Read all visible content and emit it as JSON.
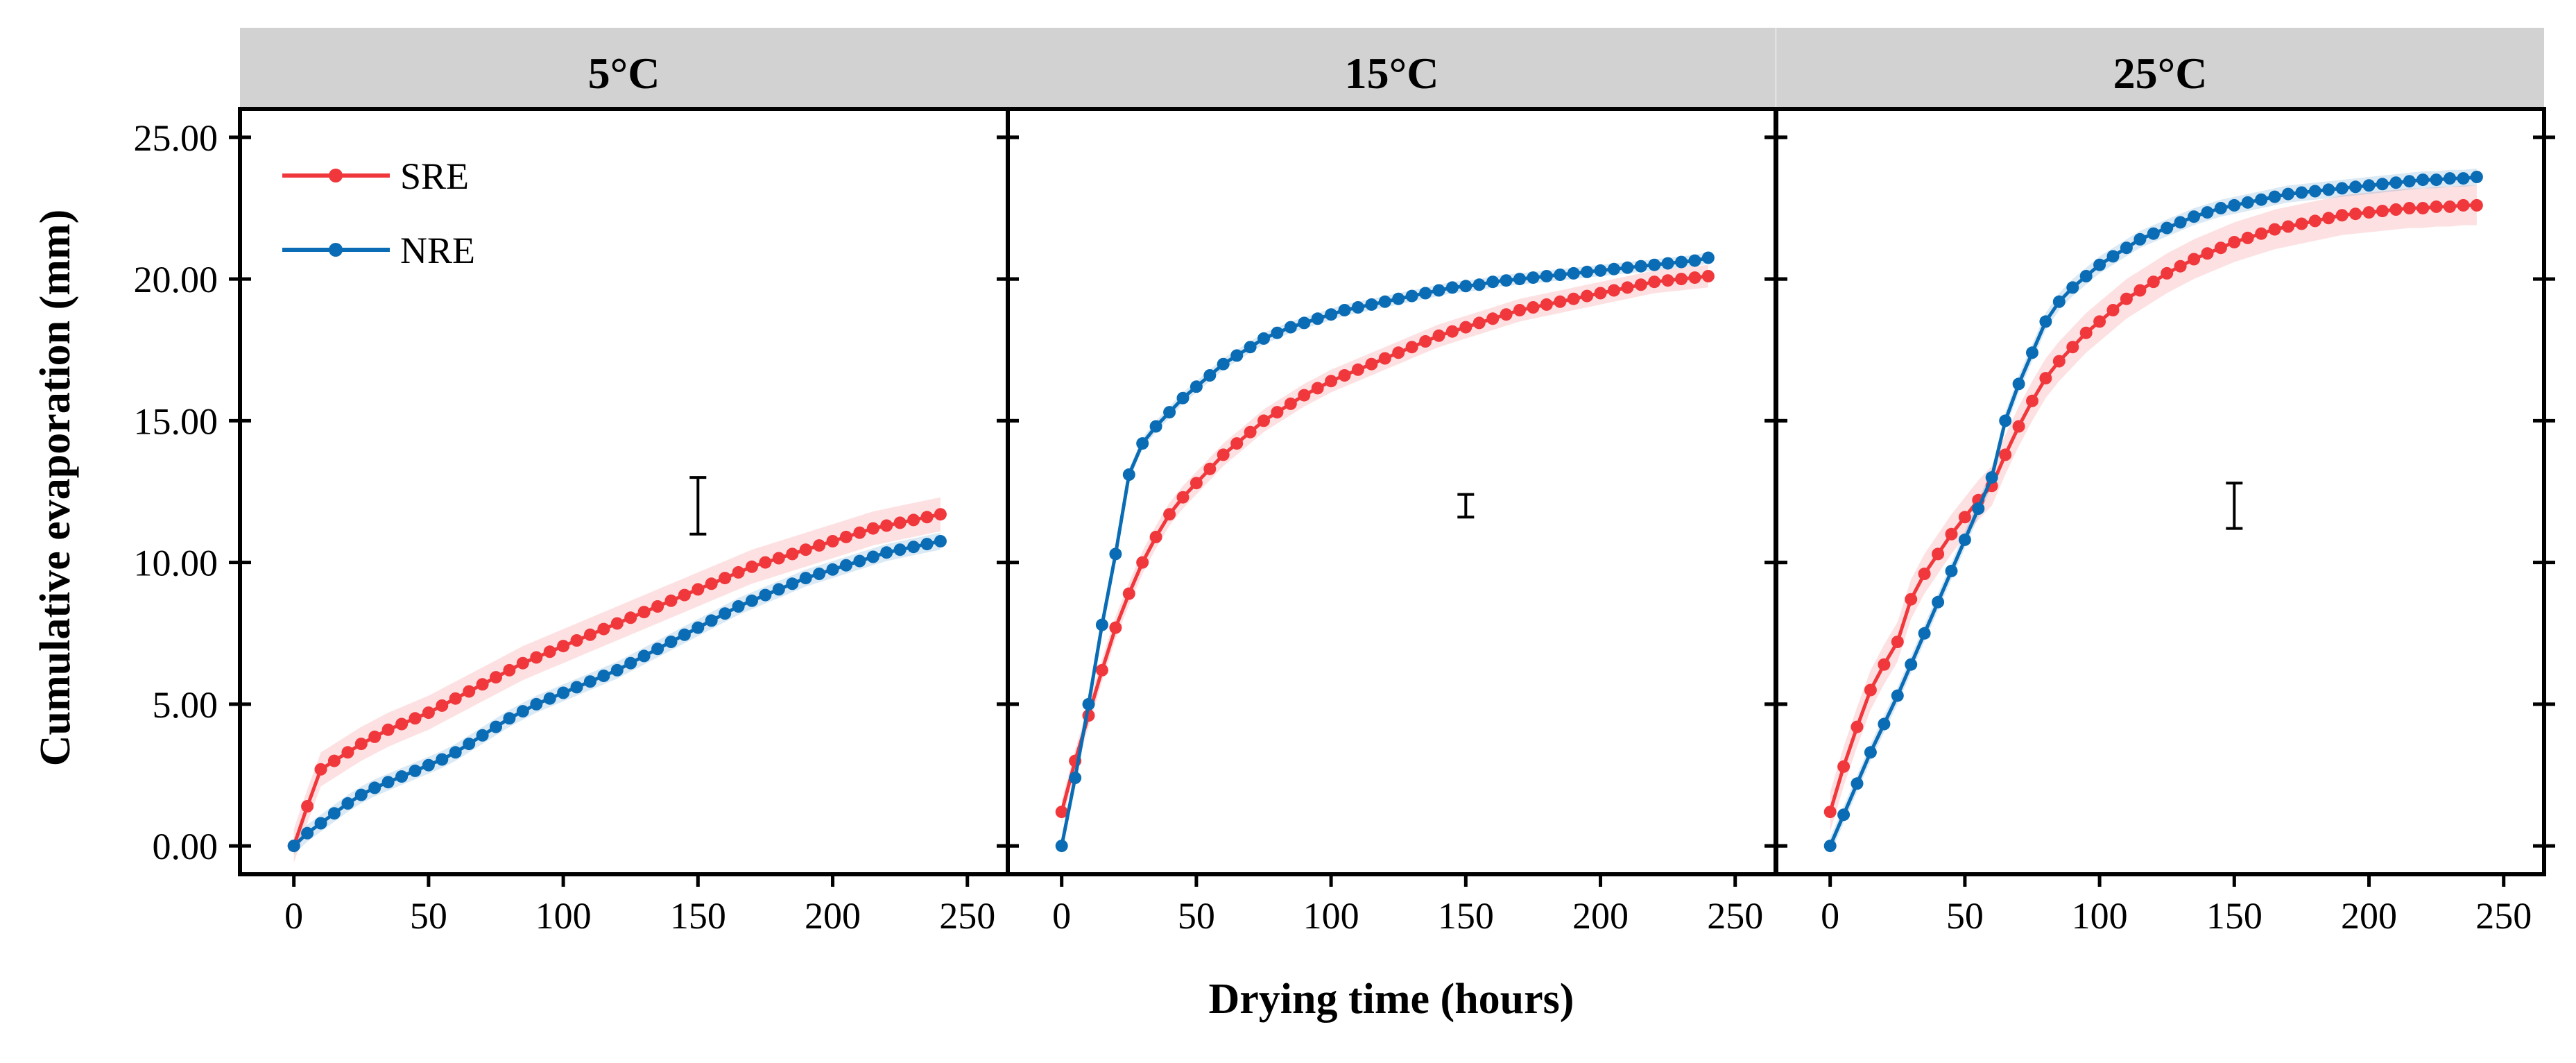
{
  "chart_data": {
    "type": "line",
    "xlabel": "Drying time (hours)",
    "ylabel": "Cumulative evaporation (mm)",
    "xlim": [
      -20,
      265
    ],
    "ylim": [
      -1,
      26
    ],
    "xticks": [
      0,
      50,
      100,
      150,
      200,
      250
    ],
    "yticks": [
      "0.00",
      "5.00",
      "10.00",
      "15.00",
      "20.00",
      "25.00"
    ],
    "legend_position": "top-left (first panel)",
    "grid": false,
    "colors": {
      "SRE": "#f0373c",
      "NRE": "#0a6cb4",
      "strip": "#d2d2d2"
    },
    "legend": [
      {
        "name": "SRE",
        "color": "#f0373c"
      },
      {
        "name": "NRE",
        "color": "#0a6cb4"
      }
    ],
    "panels": [
      {
        "title": "5°C",
        "error_bar": {
          "x": 150,
          "low": 11.0,
          "high": 13.0
        },
        "series": [
          {
            "name": "SRE",
            "color": "#f0373c",
            "band": 0.6,
            "x": [
              0,
              5,
              10,
              15,
              20,
              25,
              30,
              35,
              40,
              45,
              50,
              55,
              60,
              65,
              70,
              75,
              80,
              85,
              90,
              95,
              100,
              105,
              110,
              115,
              120,
              125,
              130,
              135,
              140,
              145,
              150,
              155,
              160,
              165,
              170,
              175,
              180,
              185,
              190,
              195,
              200,
              205,
              210,
              215,
              220,
              225,
              230,
              235,
              240
            ],
            "y": [
              0.0,
              1.4,
              2.7,
              3.0,
              3.3,
              3.6,
              3.85,
              4.1,
              4.3,
              4.5,
              4.7,
              4.95,
              5.2,
              5.45,
              5.7,
              5.95,
              6.2,
              6.45,
              6.65,
              6.85,
              7.05,
              7.25,
              7.45,
              7.65,
              7.85,
              8.05,
              8.25,
              8.45,
              8.65,
              8.85,
              9.05,
              9.25,
              9.45,
              9.65,
              9.85,
              10.0,
              10.15,
              10.3,
              10.45,
              10.6,
              10.75,
              10.9,
              11.05,
              11.2,
              11.3,
              11.4,
              11.5,
              11.6,
              11.7
            ]
          },
          {
            "name": "NRE",
            "color": "#0a6cb4",
            "band": 0.3,
            "x": [
              0,
              5,
              10,
              15,
              20,
              25,
              30,
              35,
              40,
              45,
              50,
              55,
              60,
              65,
              70,
              75,
              80,
              85,
              90,
              95,
              100,
              105,
              110,
              115,
              120,
              125,
              130,
              135,
              140,
              145,
              150,
              155,
              160,
              165,
              170,
              175,
              180,
              185,
              190,
              195,
              200,
              205,
              210,
              215,
              220,
              225,
              230,
              235,
              240
            ],
            "y": [
              0.0,
              0.45,
              0.8,
              1.15,
              1.5,
              1.8,
              2.05,
              2.25,
              2.45,
              2.65,
              2.85,
              3.05,
              3.3,
              3.6,
              3.9,
              4.2,
              4.5,
              4.75,
              5.0,
              5.2,
              5.4,
              5.6,
              5.8,
              6.0,
              6.2,
              6.45,
              6.7,
              6.95,
              7.2,
              7.45,
              7.7,
              7.95,
              8.2,
              8.45,
              8.65,
              8.85,
              9.05,
              9.25,
              9.45,
              9.6,
              9.75,
              9.9,
              10.05,
              10.2,
              10.35,
              10.45,
              10.55,
              10.65,
              10.75
            ]
          }
        ]
      },
      {
        "title": "15°C",
        "error_bar": {
          "x": 150,
          "low": 11.6,
          "high": 12.4
        },
        "series": [
          {
            "name": "SRE",
            "color": "#f0373c",
            "band": 0.4,
            "x": [
              0,
              5,
              10,
              15,
              20,
              25,
              30,
              35,
              40,
              45,
              50,
              55,
              60,
              65,
              70,
              75,
              80,
              85,
              90,
              95,
              100,
              105,
              110,
              115,
              120,
              125,
              130,
              135,
              140,
              145,
              150,
              155,
              160,
              165,
              170,
              175,
              180,
              185,
              190,
              195,
              200,
              205,
              210,
              215,
              220,
              225,
              230,
              235,
              240
            ],
            "y": [
              1.2,
              3.0,
              4.6,
              6.2,
              7.7,
              8.9,
              10.0,
              10.9,
              11.7,
              12.3,
              12.8,
              13.3,
              13.8,
              14.2,
              14.6,
              15.0,
              15.3,
              15.6,
              15.9,
              16.15,
              16.4,
              16.6,
              16.8,
              17.0,
              17.2,
              17.4,
              17.6,
              17.8,
              18.0,
              18.15,
              18.3,
              18.45,
              18.6,
              18.75,
              18.9,
              19.0,
              19.1,
              19.2,
              19.3,
              19.4,
              19.5,
              19.6,
              19.7,
              19.8,
              19.9,
              19.95,
              20.0,
              20.05,
              20.1
            ]
          },
          {
            "name": "NRE",
            "color": "#0a6cb4",
            "band": 0.2,
            "x": [
              0,
              5,
              10,
              15,
              20,
              25,
              30,
              35,
              40,
              45,
              50,
              55,
              60,
              65,
              70,
              75,
              80,
              85,
              90,
              95,
              100,
              105,
              110,
              115,
              120,
              125,
              130,
              135,
              140,
              145,
              150,
              155,
              160,
              165,
              170,
              175,
              180,
              185,
              190,
              195,
              200,
              205,
              210,
              215,
              220,
              225,
              230,
              235,
              240
            ],
            "y": [
              0.0,
              2.4,
              5.0,
              7.8,
              10.3,
              13.1,
              14.2,
              14.8,
              15.3,
              15.8,
              16.2,
              16.6,
              17.0,
              17.3,
              17.6,
              17.9,
              18.1,
              18.3,
              18.45,
              18.6,
              18.75,
              18.9,
              19.0,
              19.1,
              19.2,
              19.3,
              19.4,
              19.5,
              19.6,
              19.7,
              19.75,
              19.8,
              19.9,
              19.95,
              20.0,
              20.05,
              20.1,
              20.15,
              20.2,
              20.25,
              20.3,
              20.35,
              20.4,
              20.45,
              20.5,
              20.55,
              20.6,
              20.65,
              20.75
            ]
          }
        ]
      },
      {
        "title": "25°C",
        "error_bar": {
          "x": 150,
          "low": 11.2,
          "high": 12.8
        },
        "series": [
          {
            "name": "SRE",
            "color": "#f0373c",
            "band": 0.7,
            "x": [
              0,
              5,
              10,
              15,
              20,
              25,
              30,
              35,
              40,
              45,
              50,
              55,
              60,
              65,
              70,
              75,
              80,
              85,
              90,
              95,
              100,
              105,
              110,
              115,
              120,
              125,
              130,
              135,
              140,
              145,
              150,
              155,
              160,
              165,
              170,
              175,
              180,
              185,
              190,
              195,
              200,
              205,
              210,
              215,
              220,
              225,
              230,
              235,
              240
            ],
            "y": [
              1.2,
              2.8,
              4.2,
              5.5,
              6.4,
              7.2,
              8.7,
              9.6,
              10.3,
              11.0,
              11.6,
              12.2,
              12.7,
              13.8,
              14.8,
              15.7,
              16.5,
              17.1,
              17.6,
              18.1,
              18.5,
              18.9,
              19.3,
              19.6,
              19.9,
              20.2,
              20.45,
              20.7,
              20.9,
              21.1,
              21.3,
              21.45,
              21.6,
              21.75,
              21.85,
              21.95,
              22.05,
              22.15,
              22.25,
              22.3,
              22.35,
              22.4,
              22.45,
              22.5,
              22.5,
              22.55,
              22.55,
              22.6,
              22.6
            ]
          },
          {
            "name": "NRE",
            "color": "#0a6cb4",
            "band": 0.3,
            "x": [
              0,
              5,
              10,
              15,
              20,
              25,
              30,
              35,
              40,
              45,
              50,
              55,
              60,
              65,
              70,
              75,
              80,
              85,
              90,
              95,
              100,
              105,
              110,
              115,
              120,
              125,
              130,
              135,
              140,
              145,
              150,
              155,
              160,
              165,
              170,
              175,
              180,
              185,
              190,
              195,
              200,
              205,
              210,
              215,
              220,
              225,
              230,
              235,
              240
            ],
            "y": [
              0.0,
              1.1,
              2.2,
              3.3,
              4.3,
              5.3,
              6.4,
              7.5,
              8.6,
              9.7,
              10.8,
              11.9,
              13.0,
              15.0,
              16.3,
              17.4,
              18.5,
              19.2,
              19.7,
              20.1,
              20.5,
              20.8,
              21.1,
              21.4,
              21.6,
              21.8,
              22.0,
              22.2,
              22.35,
              22.5,
              22.6,
              22.7,
              22.8,
              22.9,
              23.0,
              23.05,
              23.1,
              23.15,
              23.2,
              23.25,
              23.3,
              23.35,
              23.4,
              23.45,
              23.5,
              23.5,
              23.55,
              23.55,
              23.6
            ]
          }
        ]
      }
    ]
  }
}
